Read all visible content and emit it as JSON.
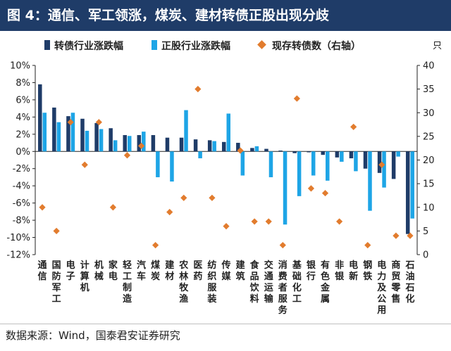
{
  "figure": {
    "title": "图 4：通信、军工领涨，煤炭、建材转债正股出现分歧",
    "source": "数据来源：Wind，国泰君安证券研究"
  },
  "colors": {
    "title_bg": "#1f3c68",
    "series_convertible": "#1f3c68",
    "series_stock": "#1ea5e6",
    "series_count": "#e27c2e"
  },
  "chart_data": {
    "type": "bar",
    "categories": [
      "通信",
      "国防军工",
      "电子",
      "计算机",
      "机械",
      "家电",
      "轻工制造",
      "汽车",
      "煤炭",
      "建材",
      "农林牧渔",
      "医药",
      "纺织服装",
      "传媒",
      "建筑",
      "食品饮料",
      "交通运输",
      "消费者服务",
      "基础化工",
      "银行",
      "有色金属",
      "非银",
      "电新",
      "钢铁",
      "电力及公用",
      "商贸零售",
      "石油石化"
    ],
    "series": [
      {
        "name": "转债行业涨跌幅",
        "type": "bar",
        "axis": "left",
        "values": [
          7.8,
          5.1,
          4.1,
          3.8,
          3.3,
          2.7,
          1.9,
          1.9,
          1.9,
          1.6,
          1.6,
          1.4,
          1.3,
          1.1,
          1.0,
          0.4,
          0.3,
          0.1,
          -0.2,
          -0.1,
          -0.4,
          -0.7,
          -0.8,
          -2.0,
          -2.5,
          -3.2,
          -9.6
        ]
      },
      {
        "name": "正股行业涨跌幅",
        "type": "bar",
        "axis": "left",
        "values": [
          4.5,
          3.4,
          4.5,
          2.4,
          2.6,
          1.3,
          1.8,
          2.3,
          -3.0,
          -3.5,
          4.8,
          -0.8,
          1.2,
          4.4,
          -2.8,
          0.6,
          -3.0,
          -8.5,
          -5.2,
          -2.8,
          -3.4,
          -1.2,
          -2.3,
          -6.9,
          -4.2,
          -0.6,
          -7.8
        ]
      },
      {
        "name": "现存转债数（右轴）",
        "type": "scatter",
        "axis": "right",
        "values": [
          10,
          5,
          28,
          19,
          28,
          10,
          21,
          23,
          2,
          9,
          12,
          35,
          12,
          6,
          22,
          7,
          7,
          2,
          33,
          14,
          13,
          7,
          27,
          2,
          19,
          4,
          4
        ]
      }
    ],
    "y_left": {
      "min": -12,
      "max": 10,
      "step": 2,
      "format": "percent"
    },
    "y_right": {
      "min": 0,
      "max": 40,
      "step": 5,
      "unit": "只"
    },
    "legend_position": "top",
    "grid": false
  }
}
